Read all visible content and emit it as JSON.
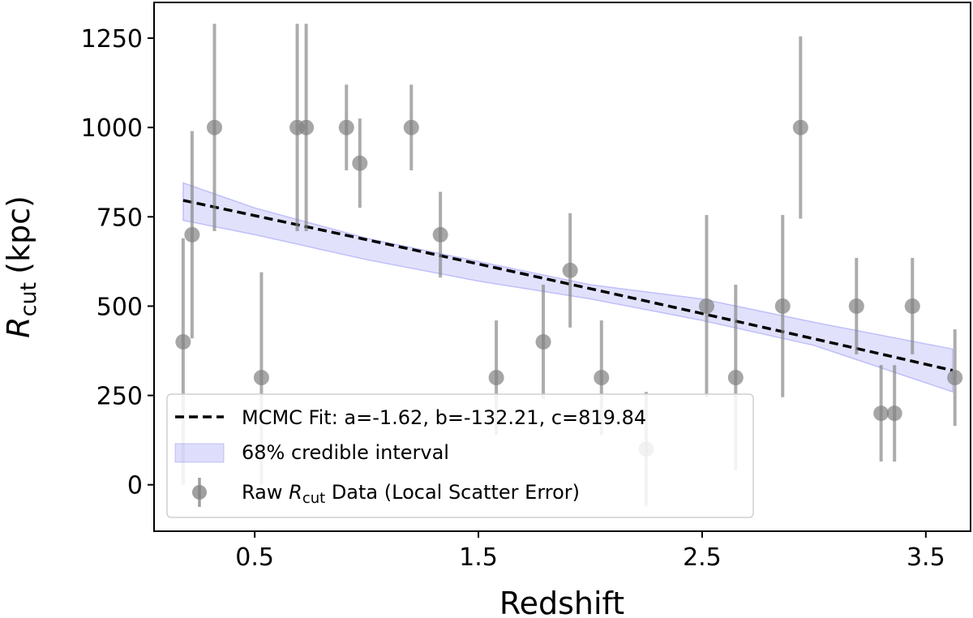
{
  "chart_data": {
    "type": "scatter",
    "xlabel": "Redshift",
    "ylabel_main": "R",
    "ylabel_sub": "cut",
    "ylabel_unit": "(kpc)",
    "xlim": [
      0.05,
      3.7
    ],
    "ylim": [
      -130,
      1350
    ],
    "xticks": [
      0.5,
      1.5,
      2.5,
      3.5
    ],
    "xtick_labels": [
      "0.5",
      "1.5",
      "2.5",
      "3.5"
    ],
    "yticks": [
      0,
      250,
      500,
      750,
      1000,
      1250
    ],
    "ytick_labels": [
      "0",
      "250",
      "500",
      "750",
      "1000",
      "1250"
    ],
    "grid": false,
    "fit": {
      "label": "MCMC Fit: a=-1.62, b=-132.21, c=819.84",
      "a": -1.62,
      "b": -132.21,
      "c": 819.84,
      "x_range": [
        0.18,
        3.62
      ],
      "style": "dashed",
      "color": "#000000"
    },
    "band": {
      "label": "68% credible interval",
      "color": "#6b6bf0",
      "x": [
        0.18,
        0.5,
        1.0,
        1.5,
        2.0,
        2.5,
        3.0,
        3.62
      ],
      "lower": [
        740,
        700,
        630,
        570,
        520,
        460,
        390,
        260
      ],
      "upper": [
        845,
        775,
        690,
        625,
        560,
        520,
        455,
        380
      ]
    },
    "points": {
      "label_prefix": "Raw ",
      "label_main": "R",
      "label_sub": "cut",
      "label_suffix": " Data (Local Scatter Error)",
      "color": "#808080",
      "data": [
        {
          "x": 0.18,
          "y": 400,
          "lo": 0,
          "hi": 690
        },
        {
          "x": 0.22,
          "y": 700,
          "lo": 410,
          "hi": 990
        },
        {
          "x": 0.32,
          "y": 1000,
          "lo": 710,
          "hi": 1290
        },
        {
          "x": 0.53,
          "y": 300,
          "lo": 0,
          "hi": 595
        },
        {
          "x": 0.69,
          "y": 1000,
          "lo": 710,
          "hi": 1290
        },
        {
          "x": 0.73,
          "y": 1000,
          "lo": 710,
          "hi": 1290
        },
        {
          "x": 0.91,
          "y": 1000,
          "lo": 880,
          "hi": 1120
        },
        {
          "x": 0.97,
          "y": 900,
          "lo": 775,
          "hi": 1025
        },
        {
          "x": 1.2,
          "y": 1000,
          "lo": 880,
          "hi": 1120
        },
        {
          "x": 1.33,
          "y": 700,
          "lo": 580,
          "hi": 820
        },
        {
          "x": 1.58,
          "y": 300,
          "lo": 140,
          "hi": 460
        },
        {
          "x": 1.79,
          "y": 400,
          "lo": 240,
          "hi": 560
        },
        {
          "x": 1.91,
          "y": 600,
          "lo": 440,
          "hi": 760
        },
        {
          "x": 2.05,
          "y": 300,
          "lo": 140,
          "hi": 460
        },
        {
          "x": 2.25,
          "y": 100,
          "lo": -60,
          "hi": 260
        },
        {
          "x": 2.52,
          "y": 500,
          "lo": 245,
          "hi": 755
        },
        {
          "x": 2.65,
          "y": 300,
          "lo": 40,
          "hi": 560
        },
        {
          "x": 2.86,
          "y": 500,
          "lo": 245,
          "hi": 755
        },
        {
          "x": 2.94,
          "y": 1000,
          "lo": 745,
          "hi": 1255
        },
        {
          "x": 3.19,
          "y": 500,
          "lo": 365,
          "hi": 635
        },
        {
          "x": 3.3,
          "y": 200,
          "lo": 65,
          "hi": 335
        },
        {
          "x": 3.36,
          "y": 200,
          "lo": 65,
          "hi": 335
        },
        {
          "x": 3.44,
          "y": 500,
          "lo": 365,
          "hi": 635
        },
        {
          "x": 3.63,
          "y": 300,
          "lo": 165,
          "hi": 435
        }
      ]
    },
    "legend_location": "lower-left"
  }
}
